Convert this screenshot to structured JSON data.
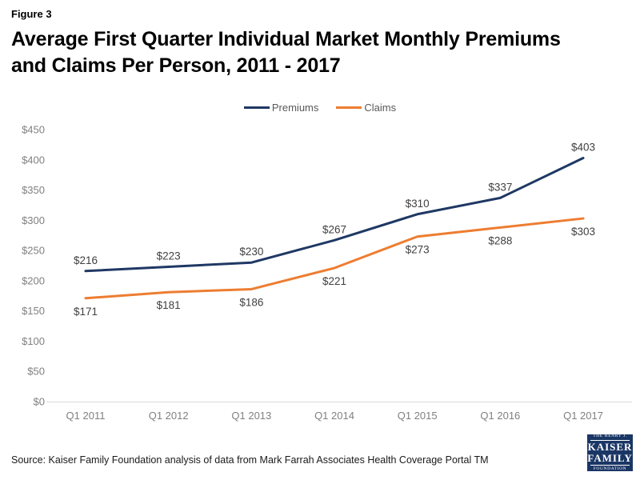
{
  "page": {
    "figure_label": "Figure 3",
    "title": "Average First Quarter Individual Market Monthly Premiums and Claims Per Person, 2011 - 2017",
    "source_note": "Source: Kaiser Family Foundation  analysis of data from Mark Farrah  Associates Health Coverage Portal TM"
  },
  "logo": {
    "line1": "THE HENRY J.",
    "line2": "KAISER",
    "line3": "FAMILY",
    "line4": "FOUNDATION",
    "background_color": "#1A3665",
    "text_color": "#FFFFFF"
  },
  "chart_data": {
    "type": "line",
    "title": "Average First Quarter Individual Market Monthly Premiums and Claims Per Person, 2011 - 2017",
    "categories": [
      "Q1 2011",
      "Q1 2012",
      "Q1 2013",
      "Q1 2014",
      "Q1 2015",
      "Q1 2016",
      "Q1 2017"
    ],
    "series": [
      {
        "name": "Premiums",
        "color": "#1F3864",
        "values": [
          216,
          223,
          230,
          267,
          310,
          337,
          403
        ],
        "data_labels": [
          "$216",
          "$223",
          "$230",
          "$267",
          "$310",
          "$337",
          "$403"
        ],
        "label_position": "above"
      },
      {
        "name": "Claims",
        "color": "#ED7D31",
        "values": [
          171,
          181,
          186,
          221,
          273,
          288,
          303
        ],
        "data_labels": [
          "$171",
          "$181",
          "$186",
          "$221",
          "$273",
          "$288",
          "$303"
        ],
        "label_position": "below"
      }
    ],
    "xlabel": "",
    "ylabel": "",
    "ylim": [
      0,
      450
    ],
    "ytick_step": 50,
    "ytick_labels": [
      "$0",
      "$50",
      "$100",
      "$150",
      "$200",
      "$250",
      "$300",
      "$350",
      "$400",
      "$450"
    ],
    "grid": false,
    "legend_position": "top-center",
    "colors": {
      "axis_line": "#D9D9D9",
      "tick_text": "#808080",
      "data_label_text": "#404040",
      "legend_text": "#595959"
    }
  }
}
